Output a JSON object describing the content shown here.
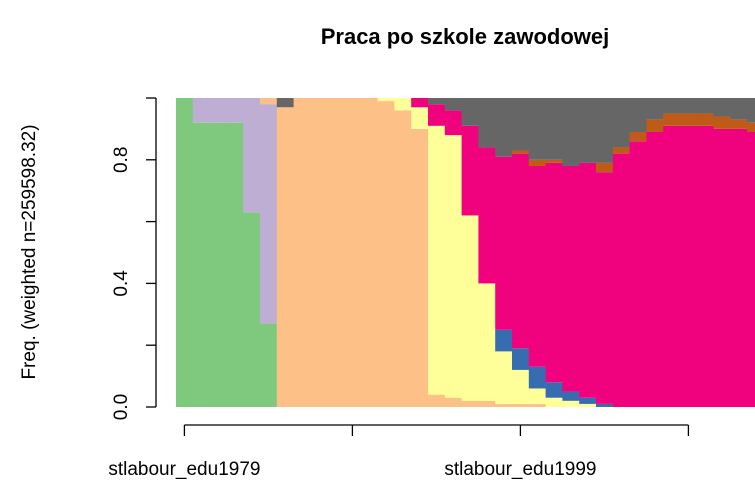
{
  "chart_data": {
    "type": "stacked_bar",
    "title": "Praca po szkole zawodowej",
    "y_label": "Freq. (weighted n=259598.32)",
    "categories": [
      "stlabour_edu1979",
      null,
      null,
      null,
      null,
      null,
      null,
      null,
      null,
      null,
      null,
      null,
      null,
      null,
      null,
      null,
      null,
      null,
      null,
      null,
      "stlabour_edu1999",
      null,
      null,
      null,
      null,
      null,
      null,
      null,
      null,
      null,
      null,
      null,
      null,
      null,
      null
    ],
    "ylim": [
      0,
      1
    ],
    "yticks": [
      {
        "value": 0,
        "label": "0.0"
      },
      {
        "value": 0.2,
        "label": null
      },
      {
        "value": 0.4,
        "label": "0.4"
      },
      {
        "value": 0.6,
        "label": null
      },
      {
        "value": 0.8,
        "label": "0.8"
      },
      {
        "value": 1,
        "label": null
      }
    ],
    "series": [
      {
        "color": "#7fc97f",
        "values": [
          1,
          0.92,
          0.92,
          0.92,
          0.63,
          0.27,
          0,
          0,
          0,
          0,
          0,
          0,
          0,
          0,
          0,
          0,
          0,
          0,
          0,
          0,
          0,
          0,
          0,
          0,
          0,
          0,
          0,
          0,
          0,
          0,
          0,
          0,
          0,
          0,
          0
        ]
      },
      {
        "color": "#beaed4",
        "values": [
          0,
          0.08,
          0.08,
          0.08,
          0.37,
          0.71,
          0,
          0,
          0,
          0,
          0,
          0,
          0,
          0,
          0,
          0,
          0,
          0,
          0,
          0,
          0,
          0,
          0,
          0,
          0,
          0,
          0,
          0,
          0,
          0,
          0,
          0,
          0,
          0,
          0
        ]
      },
      {
        "color": "#fdc086",
        "values": [
          0,
          0,
          0,
          0,
          0,
          0.02,
          0.97,
          1,
          1,
          1,
          1,
          1,
          0.99,
          0.96,
          0.9,
          0.04,
          0.03,
          0.02,
          0.02,
          0.01,
          0.01,
          0.01,
          0,
          0,
          0,
          0,
          0,
          0,
          0,
          0,
          0,
          0,
          0,
          0,
          0
        ]
      },
      {
        "color": "#ffff99",
        "values": [
          0,
          0,
          0,
          0,
          0,
          0,
          0,
          0,
          0,
          0,
          0,
          0,
          0.01,
          0.04,
          0.07,
          0.87,
          0.85,
          0.6,
          0.38,
          0.17,
          0.11,
          0.05,
          0.03,
          0.02,
          0.01,
          0,
          0,
          0,
          0,
          0,
          0,
          0,
          0,
          0,
          0
        ]
      },
      {
        "color": "#386cb0",
        "values": [
          0,
          0,
          0,
          0,
          0,
          0,
          0,
          0,
          0,
          0,
          0,
          0,
          0,
          0,
          0,
          0,
          0,
          0,
          0,
          0.07,
          0.07,
          0.07,
          0.05,
          0.03,
          0.02,
          0.01,
          0,
          0,
          0,
          0,
          0,
          0,
          0,
          0,
          0
        ]
      },
      {
        "color": "#f0027f",
        "values": [
          0,
          0,
          0,
          0,
          0,
          0,
          0,
          0,
          0,
          0,
          0,
          0,
          0,
          0,
          0.03,
          0.07,
          0.08,
          0.29,
          0.44,
          0.56,
          0.63,
          0.65,
          0.71,
          0.73,
          0.76,
          0.75,
          0.82,
          0.86,
          0.89,
          0.91,
          0.91,
          0.91,
          0.9,
          0.9,
          0.89
        ]
      },
      {
        "color": "#bf5b17",
        "values": [
          0,
          0,
          0,
          0,
          0,
          0,
          0,
          0,
          0,
          0,
          0,
          0,
          0,
          0,
          0,
          0,
          0,
          0,
          0,
          0,
          0.01,
          0.02,
          0.01,
          0,
          0,
          0.03,
          0.02,
          0.03,
          0.04,
          0.04,
          0.04,
          0.04,
          0.04,
          0.03,
          0.03
        ]
      },
      {
        "color": "#666666",
        "values": [
          0,
          0,
          0,
          0,
          0,
          0,
          0.03,
          0,
          0,
          0,
          0,
          0,
          0,
          0,
          0,
          0.02,
          0.04,
          0.09,
          0.16,
          0.19,
          0.17,
          0.2,
          0.2,
          0.22,
          0.21,
          0.21,
          0.16,
          0.11,
          0.07,
          0.05,
          0.05,
          0.05,
          0.06,
          0.07,
          0.08
        ]
      }
    ]
  }
}
